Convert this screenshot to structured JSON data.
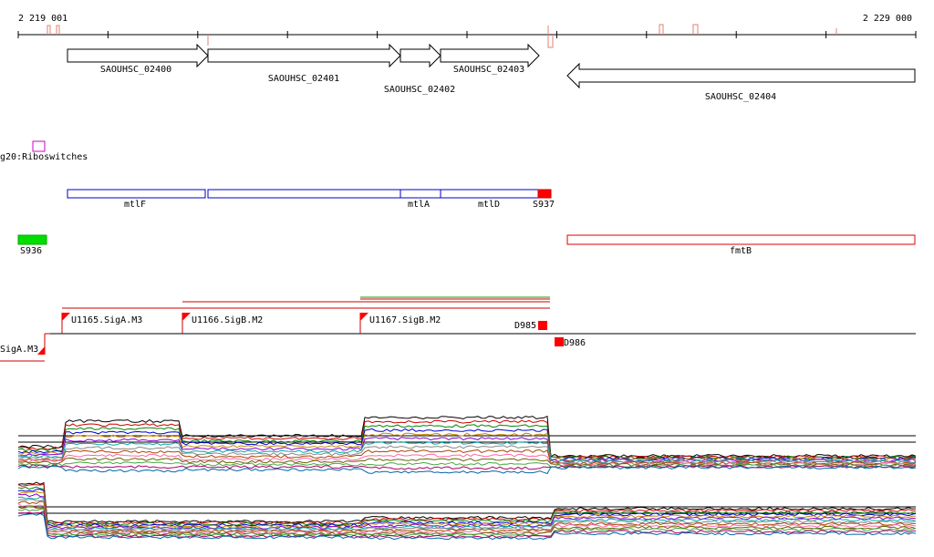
{
  "ruler": {
    "start_label": "2 219 001",
    "end_label": "2 229 000"
  },
  "genes": [
    {
      "name": "SAOUHSC_02400",
      "strand": "+"
    },
    {
      "name": "SAOUHSC_02401",
      "strand": "+"
    },
    {
      "name": "SAOUHSC_02402",
      "strand": "+"
    },
    {
      "name": "SAOUHSC_02403",
      "strand": "+"
    },
    {
      "name": "SAOUHSC_02404",
      "strand": "-"
    }
  ],
  "riboswitch_label": "g20:Riboswitches",
  "operon_labels": {
    "mtlF": "mtlF",
    "mtlA": "mtlA",
    "mtlD": "mtlD",
    "S937": "S937"
  },
  "features": {
    "S936": "S936",
    "fmtB": "fmtB"
  },
  "promoters": {
    "sigA_left": "SigA.M3",
    "u1165": "U1165.SigA.M3",
    "u1166": "U1166.SigB.M2",
    "u1167": "U1167.SigB.M2",
    "d985": "D985",
    "d986": "D986"
  },
  "colors": {
    "gene_outline": "#000000",
    "operon_outline": "#0000cc",
    "highlight_red": "#ff0000",
    "s936_green": "#00dd00",
    "fmtb_outline": "#dd0000",
    "riboswitch": "#cc00cc",
    "expression_series": [
      "#000000",
      "#cc0000",
      "#008800",
      "#0000cc",
      "#cc8800",
      "#8800cc",
      "#00aaaa",
      "#888888",
      "#aa4400",
      "#ff66aa",
      "#666600",
      "#44aa44",
      "#aa0066",
      "#0066aa"
    ]
  }
}
